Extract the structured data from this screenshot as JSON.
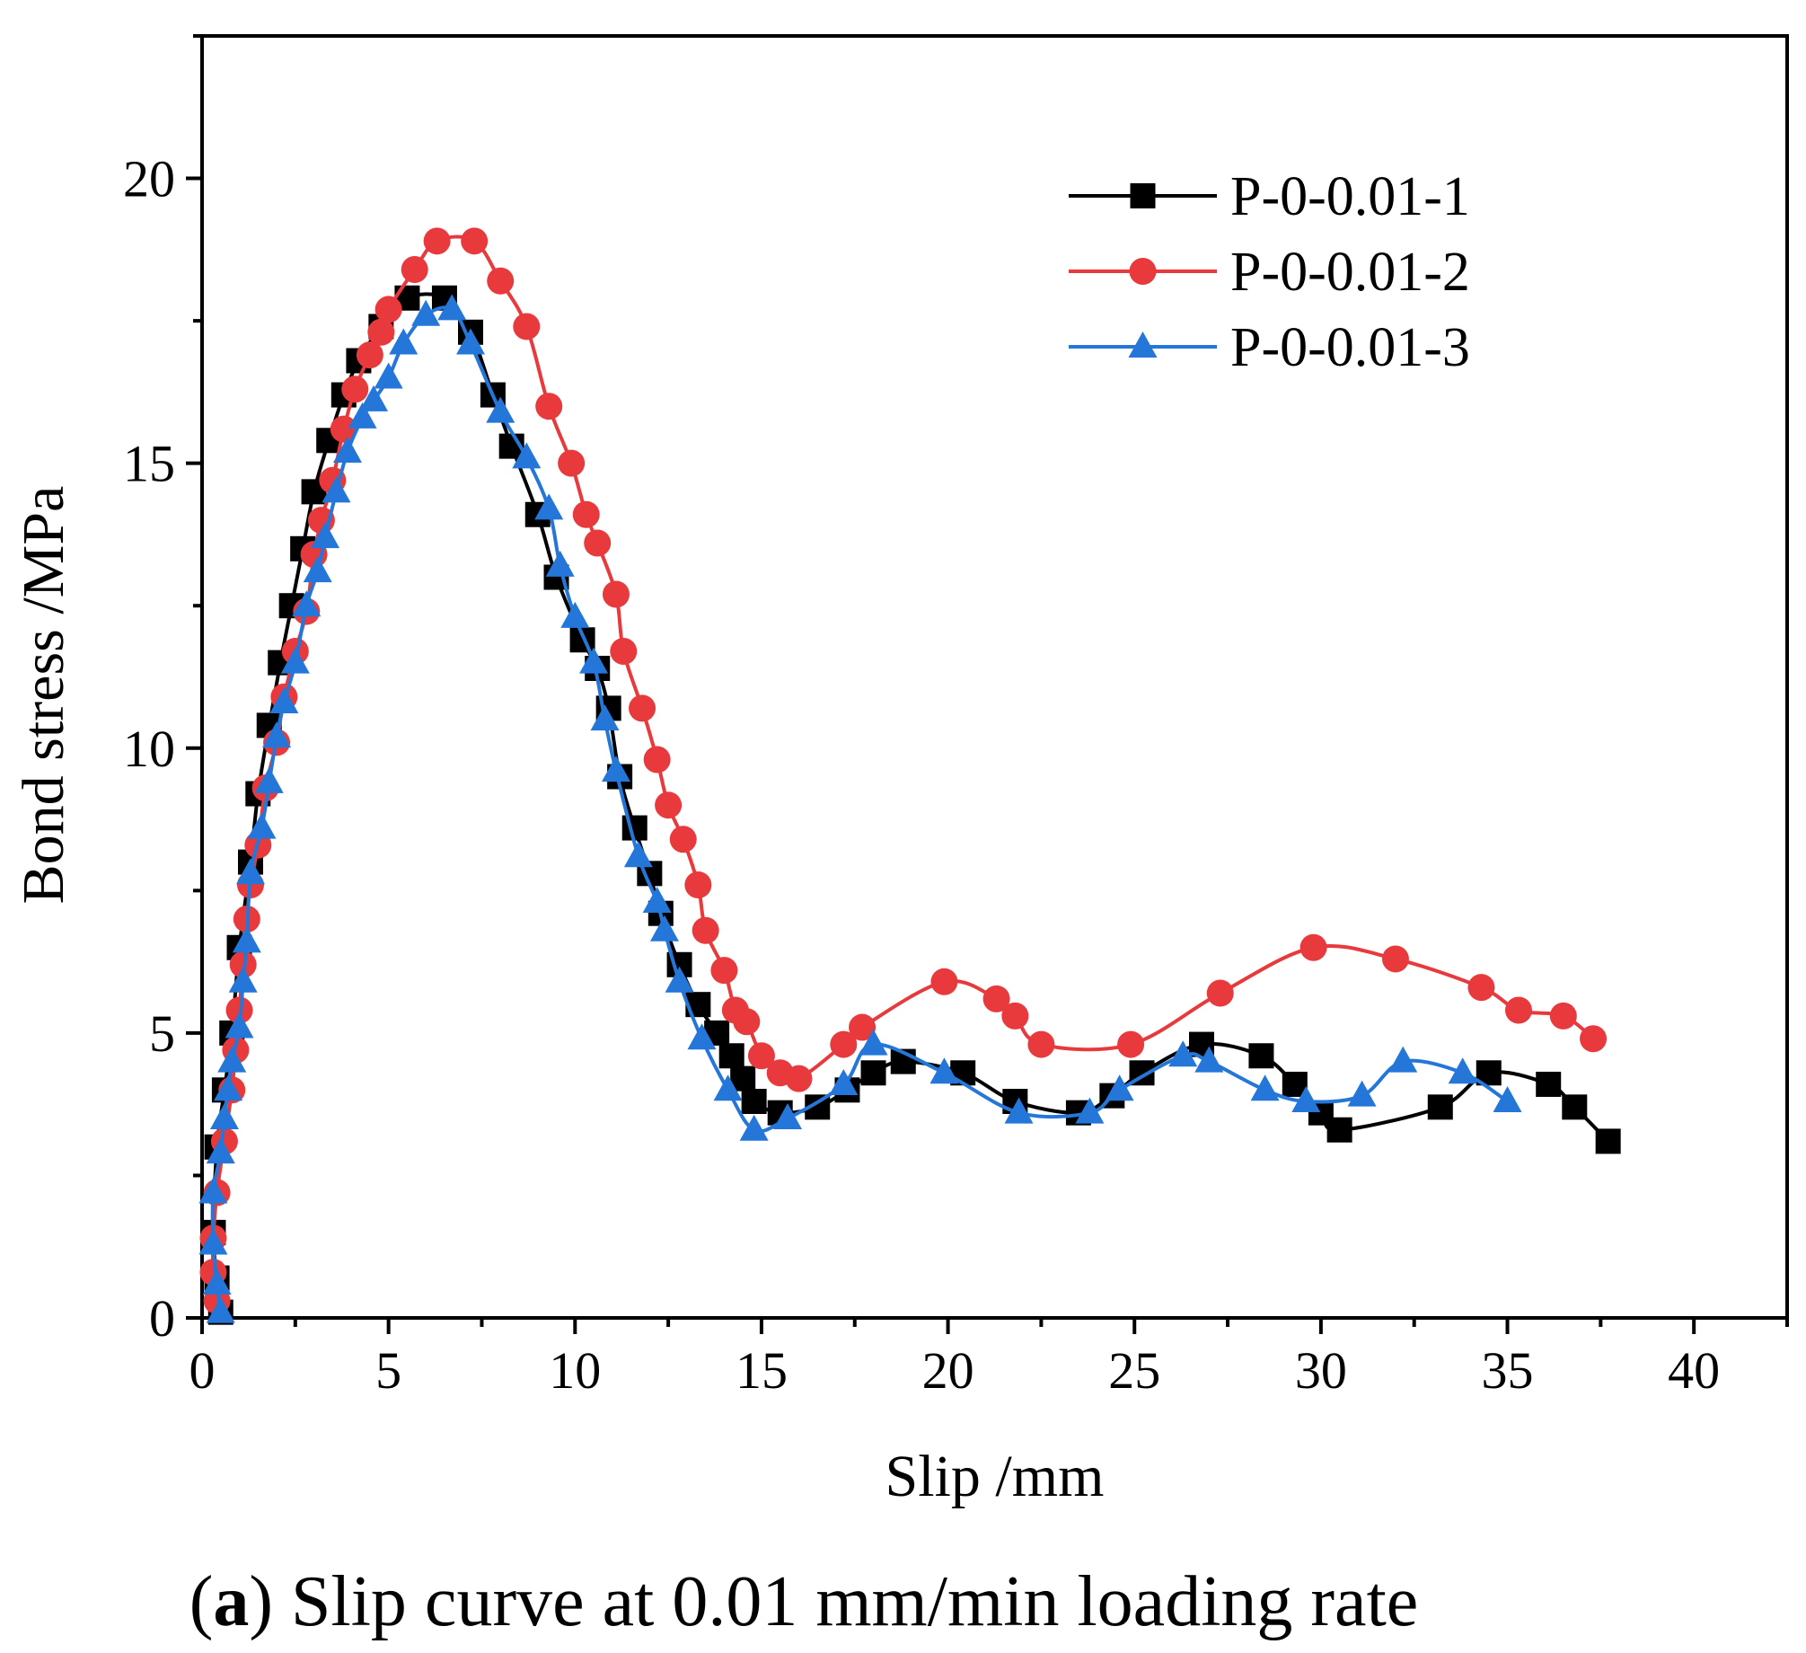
{
  "chart_data": {
    "type": "line",
    "title": "",
    "xlabel": "Slip /mm",
    "ylabel": "Bond stress /MPa",
    "xlim": [
      0,
      42.5
    ],
    "ylim": [
      0,
      22.5
    ],
    "xticks": [
      0,
      5,
      10,
      15,
      20,
      25,
      30,
      35,
      40
    ],
    "yticks": [
      0,
      5,
      10,
      15,
      20
    ],
    "x_tick_labels": [
      "0",
      "5",
      "10",
      "15",
      "20",
      "25",
      "30",
      "35",
      "40"
    ],
    "y_tick_labels": [
      "0",
      "5",
      "10",
      "15",
      "20"
    ],
    "legend_position": "top-right",
    "series": [
      {
        "name": "P-0-0.01-1",
        "color": "#000000",
        "marker": "square",
        "points": [
          [
            0.5,
            0.1
          ],
          [
            0.4,
            0.7
          ],
          [
            0.3,
            1.5
          ],
          [
            0.4,
            3.0
          ],
          [
            0.6,
            4.0
          ],
          [
            0.8,
            5.0
          ],
          [
            1.0,
            6.5
          ],
          [
            1.3,
            8.0
          ],
          [
            1.5,
            9.2
          ],
          [
            1.8,
            10.4
          ],
          [
            2.1,
            11.5
          ],
          [
            2.4,
            12.5
          ],
          [
            2.7,
            13.5
          ],
          [
            3.0,
            14.5
          ],
          [
            3.4,
            15.4
          ],
          [
            3.8,
            16.2
          ],
          [
            4.2,
            16.8
          ],
          [
            4.8,
            17.4
          ],
          [
            5.5,
            17.9
          ],
          [
            6.5,
            17.9
          ],
          [
            7.2,
            17.3
          ],
          [
            7.8,
            16.2
          ],
          [
            8.3,
            15.3
          ],
          [
            9.0,
            14.1
          ],
          [
            9.5,
            13.0
          ],
          [
            10.2,
            11.9
          ],
          [
            10.6,
            11.4
          ],
          [
            10.9,
            10.7
          ],
          [
            11.2,
            9.5
          ],
          [
            11.6,
            8.6
          ],
          [
            12.0,
            7.8
          ],
          [
            12.3,
            7.1
          ],
          [
            12.8,
            6.2
          ],
          [
            13.3,
            5.5
          ],
          [
            13.8,
            5.0
          ],
          [
            14.2,
            4.6
          ],
          [
            14.5,
            4.2
          ],
          [
            14.8,
            3.8
          ],
          [
            15.5,
            3.6
          ],
          [
            16.5,
            3.7
          ],
          [
            17.3,
            4.0
          ],
          [
            18.0,
            4.3
          ],
          [
            18.8,
            4.5
          ],
          [
            20.4,
            4.3
          ],
          [
            21.8,
            3.8
          ],
          [
            23.5,
            3.6
          ],
          [
            24.4,
            3.9
          ],
          [
            25.2,
            4.3
          ],
          [
            26.8,
            4.8
          ],
          [
            28.4,
            4.6
          ],
          [
            29.3,
            4.1
          ],
          [
            30.0,
            3.6
          ],
          [
            30.5,
            3.3
          ],
          [
            33.2,
            3.7
          ],
          [
            34.5,
            4.3
          ],
          [
            36.1,
            4.1
          ],
          [
            36.8,
            3.7
          ],
          [
            37.7,
            3.1
          ]
        ]
      },
      {
        "name": "P-0-0.01-2",
        "color": "#e8393c",
        "marker": "circle",
        "points": [
          [
            0.4,
            0.3
          ],
          [
            0.3,
            0.8
          ],
          [
            0.3,
            1.4
          ],
          [
            0.4,
            2.2
          ],
          [
            0.6,
            3.1
          ],
          [
            0.8,
            4.0
          ],
          [
            0.9,
            4.7
          ],
          [
            1.0,
            5.4
          ],
          [
            1.1,
            6.2
          ],
          [
            1.2,
            7.0
          ],
          [
            1.3,
            7.6
          ],
          [
            1.5,
            8.3
          ],
          [
            1.7,
            9.3
          ],
          [
            2.0,
            10.1
          ],
          [
            2.2,
            10.9
          ],
          [
            2.5,
            11.7
          ],
          [
            2.8,
            12.4
          ],
          [
            3.0,
            13.4
          ],
          [
            3.2,
            14.0
          ],
          [
            3.5,
            14.7
          ],
          [
            3.8,
            15.6
          ],
          [
            4.1,
            16.3
          ],
          [
            4.5,
            16.9
          ],
          [
            4.8,
            17.3
          ],
          [
            5.0,
            17.7
          ],
          [
            5.7,
            18.4
          ],
          [
            6.3,
            18.9
          ],
          [
            7.3,
            18.9
          ],
          [
            8.0,
            18.2
          ],
          [
            8.7,
            17.4
          ],
          [
            9.3,
            16.0
          ],
          [
            9.9,
            15.0
          ],
          [
            10.3,
            14.1
          ],
          [
            10.6,
            13.6
          ],
          [
            11.1,
            12.7
          ],
          [
            11.3,
            11.7
          ],
          [
            11.8,
            10.7
          ],
          [
            12.2,
            9.8
          ],
          [
            12.5,
            9.0
          ],
          [
            12.9,
            8.4
          ],
          [
            13.3,
            7.6
          ],
          [
            13.5,
            6.8
          ],
          [
            14.0,
            6.1
          ],
          [
            14.3,
            5.4
          ],
          [
            14.6,
            5.2
          ],
          [
            15.0,
            4.6
          ],
          [
            15.5,
            4.3
          ],
          [
            16.0,
            4.2
          ],
          [
            17.2,
            4.8
          ],
          [
            17.7,
            5.1
          ],
          [
            19.9,
            5.9
          ],
          [
            21.3,
            5.6
          ],
          [
            21.8,
            5.3
          ],
          [
            22.5,
            4.8
          ],
          [
            24.9,
            4.8
          ],
          [
            27.3,
            5.7
          ],
          [
            29.8,
            6.5
          ],
          [
            32.0,
            6.3
          ],
          [
            34.3,
            5.8
          ],
          [
            35.3,
            5.4
          ],
          [
            36.5,
            5.3
          ],
          [
            37.3,
            4.9
          ]
        ]
      },
      {
        "name": "P-0-0.01-3",
        "color": "#2477d9",
        "marker": "triangle",
        "points": [
          [
            0.5,
            0.1
          ],
          [
            0.4,
            0.6
          ],
          [
            0.3,
            1.3
          ],
          [
            0.3,
            2.2
          ],
          [
            0.5,
            2.9
          ],
          [
            0.6,
            3.5
          ],
          [
            0.7,
            4.0
          ],
          [
            0.8,
            4.5
          ],
          [
            1.0,
            5.1
          ],
          [
            1.1,
            5.9
          ],
          [
            1.2,
            6.6
          ],
          [
            1.3,
            7.8
          ],
          [
            1.6,
            8.6
          ],
          [
            1.8,
            9.4
          ],
          [
            2.0,
            10.2
          ],
          [
            2.2,
            10.8
          ],
          [
            2.5,
            11.5
          ],
          [
            2.8,
            12.5
          ],
          [
            3.1,
            13.1
          ],
          [
            3.3,
            13.7
          ],
          [
            3.6,
            14.5
          ],
          [
            3.9,
            15.2
          ],
          [
            4.3,
            15.8
          ],
          [
            4.6,
            16.1
          ],
          [
            5.0,
            16.5
          ],
          [
            5.4,
            17.1
          ],
          [
            6.0,
            17.6
          ],
          [
            6.7,
            17.7
          ],
          [
            7.2,
            17.1
          ],
          [
            8.0,
            15.9
          ],
          [
            8.7,
            15.1
          ],
          [
            9.3,
            14.2
          ],
          [
            9.6,
            13.2
          ],
          [
            10.0,
            12.3
          ],
          [
            10.5,
            11.5
          ],
          [
            10.8,
            10.5
          ],
          [
            11.1,
            9.6
          ],
          [
            11.7,
            8.1
          ],
          [
            12.2,
            7.3
          ],
          [
            12.4,
            6.8
          ],
          [
            12.8,
            5.9
          ],
          [
            13.4,
            4.9
          ],
          [
            14.1,
            4.0
          ],
          [
            14.8,
            3.3
          ],
          [
            15.7,
            3.5
          ],
          [
            17.2,
            4.1
          ],
          [
            18.0,
            4.8
          ],
          [
            19.9,
            4.3
          ],
          [
            21.9,
            3.6
          ],
          [
            23.8,
            3.6
          ],
          [
            24.6,
            4.0
          ],
          [
            26.3,
            4.6
          ],
          [
            27.0,
            4.5
          ],
          [
            28.5,
            4.0
          ],
          [
            29.6,
            3.8
          ],
          [
            31.1,
            3.9
          ],
          [
            32.2,
            4.5
          ],
          [
            33.8,
            4.3
          ],
          [
            35.0,
            3.8
          ]
        ]
      }
    ]
  },
  "caption": {
    "label_bold": "a",
    "text": "Slip curve at 0.01 mm/min loading rate"
  }
}
